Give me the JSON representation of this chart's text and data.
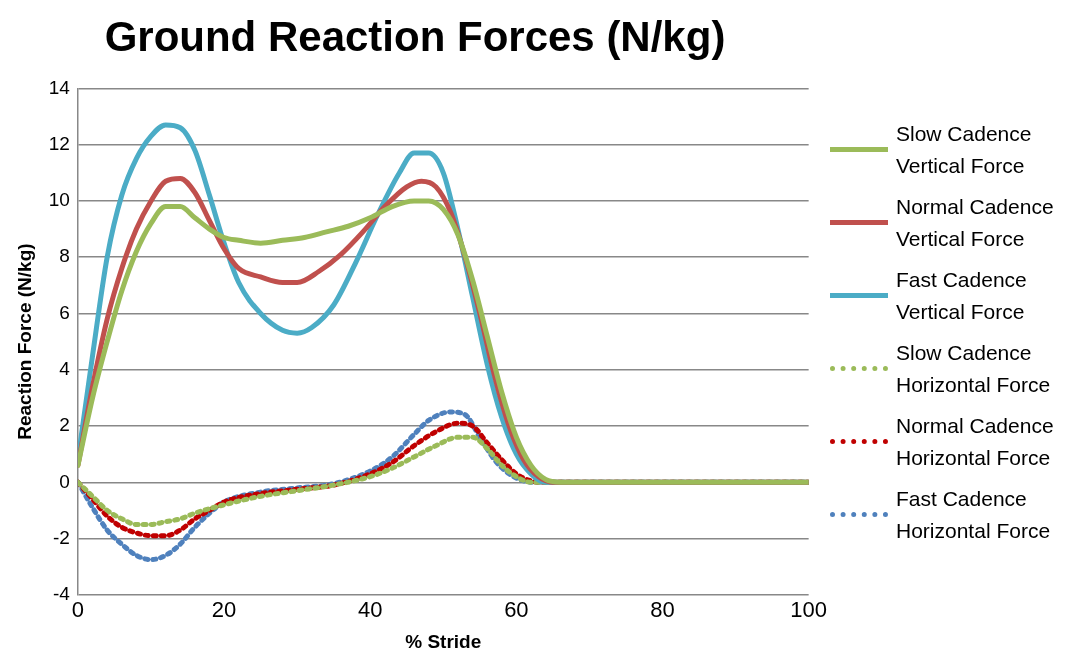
{
  "chart_data": {
    "type": "line",
    "title": "Ground Reaction Forces (N/kg)",
    "xlabel": "% Stride",
    "ylabel": "Reaction Force (N/kg)",
    "xlim": [
      0,
      100
    ],
    "xticks": [
      0,
      20,
      40,
      60,
      80,
      100
    ],
    "ylim": [
      -4,
      14
    ],
    "yticks": [
      -4,
      -2,
      0,
      2,
      4,
      6,
      8,
      10,
      12,
      14
    ],
    "grid": "y",
    "legend": "right",
    "marker": "none",
    "series": [
      {
        "name": "Slow Cadence Vertical Force",
        "color": "#9bbb59",
        "line_style": "solid",
        "x": [
          0,
          2,
          4,
          6,
          8,
          10,
          12,
          14,
          16,
          18,
          20,
          22,
          25,
          28,
          31,
          34,
          37,
          40,
          43,
          46,
          48,
          50,
          52,
          54,
          56,
          58,
          60,
          62,
          64,
          66,
          100
        ],
        "values": [
          0.6,
          3,
          5,
          6.8,
          8.2,
          9.2,
          9.8,
          9.8,
          9.4,
          9,
          8.7,
          8.6,
          8.5,
          8.6,
          8.7,
          8.9,
          9.1,
          9.4,
          9.8,
          10,
          10,
          9.7,
          8.8,
          7.2,
          5.2,
          3.2,
          1.6,
          0.6,
          0.1,
          0,
          0
        ]
      },
      {
        "name": "Normal Cadence Vertical Force",
        "color": "#c0504d",
        "line_style": "solid",
        "x": [
          0,
          2,
          4,
          6,
          8,
          10,
          12,
          14,
          16,
          18,
          20,
          22,
          25,
          28,
          30,
          33,
          36,
          39,
          42,
          45,
          47,
          49,
          51,
          53,
          55,
          57,
          59,
          61,
          63,
          65,
          100
        ],
        "values": [
          0.6,
          3.4,
          5.8,
          7.6,
          9,
          10,
          10.7,
          10.8,
          10.3,
          9.3,
          8.3,
          7.6,
          7.3,
          7.1,
          7.1,
          7.5,
          8.1,
          8.9,
          9.8,
          10.5,
          10.7,
          10.5,
          9.6,
          8,
          6,
          3.8,
          2,
          0.8,
          0.2,
          0,
          0
        ]
      },
      {
        "name": "Fast Cadence Vertical Force",
        "color": "#4bacc6",
        "line_style": "solid",
        "x": [
          0,
          2,
          4,
          6,
          8,
          10,
          12,
          14,
          16,
          18,
          20,
          22,
          25,
          28,
          30,
          32,
          35,
          38,
          41,
          44,
          46,
          48,
          50,
          52,
          54,
          56,
          58,
          60,
          62,
          64,
          100
        ],
        "values": [
          0.8,
          4.5,
          8,
          10.2,
          11.5,
          12.3,
          12.7,
          12.6,
          11.8,
          10.2,
          8.5,
          7.1,
          6,
          5.4,
          5.3,
          5.5,
          6.3,
          7.8,
          9.5,
          11,
          11.7,
          11.7,
          11,
          9,
          6.6,
          4.2,
          2.3,
          1,
          0.3,
          0,
          0
        ]
      },
      {
        "name": "Slow Cadence Horizontal Force",
        "color": "#9bbb59",
        "line_style": "dotted",
        "x": [
          0,
          2,
          4,
          6,
          8,
          10,
          12,
          14,
          16,
          20,
          25,
          30,
          35,
          40,
          43,
          46,
          49,
          52,
          54,
          56,
          58,
          60,
          62,
          100
        ],
        "values": [
          0,
          -0.5,
          -1,
          -1.3,
          -1.5,
          -1.5,
          -1.4,
          -1.3,
          -1.1,
          -0.8,
          -0.5,
          -0.3,
          -0.1,
          0.2,
          0.5,
          0.9,
          1.3,
          1.6,
          1.6,
          1.2,
          0.6,
          0.2,
          0,
          0
        ]
      },
      {
        "name": "Normal Cadence Horizontal Force",
        "color": "#c00000",
        "line_style": "dotted",
        "x": [
          0,
          2,
          4,
          6,
          8,
          10,
          12,
          14,
          16,
          18,
          20,
          25,
          30,
          35,
          40,
          43,
          46,
          49,
          52,
          54,
          56,
          58,
          60,
          62,
          64,
          100
        ],
        "values": [
          0,
          -0.6,
          -1.2,
          -1.6,
          -1.8,
          -1.9,
          -1.9,
          -1.7,
          -1.3,
          -1,
          -0.7,
          -0.4,
          -0.25,
          -0.1,
          0.3,
          0.7,
          1.3,
          1.8,
          2.1,
          2,
          1.4,
          0.8,
          0.3,
          0.05,
          0,
          0
        ]
      },
      {
        "name": "Fast Cadence Horizontal Force",
        "color": "#4f81bd",
        "line_style": "dotted",
        "x": [
          0,
          2,
          4,
          6,
          8,
          10,
          12,
          14,
          16,
          18,
          20,
          25,
          30,
          35,
          40,
          43,
          46,
          48,
          51,
          53,
          55,
          57,
          59,
          61,
          63,
          100
        ],
        "values": [
          0,
          -0.9,
          -1.7,
          -2.2,
          -2.6,
          -2.75,
          -2.6,
          -2.2,
          -1.6,
          -1.1,
          -0.7,
          -0.35,
          -0.2,
          -0.05,
          0.4,
          0.9,
          1.7,
          2.2,
          2.5,
          2.4,
          1.6,
          0.8,
          0.3,
          0.05,
          0,
          0
        ]
      }
    ]
  }
}
